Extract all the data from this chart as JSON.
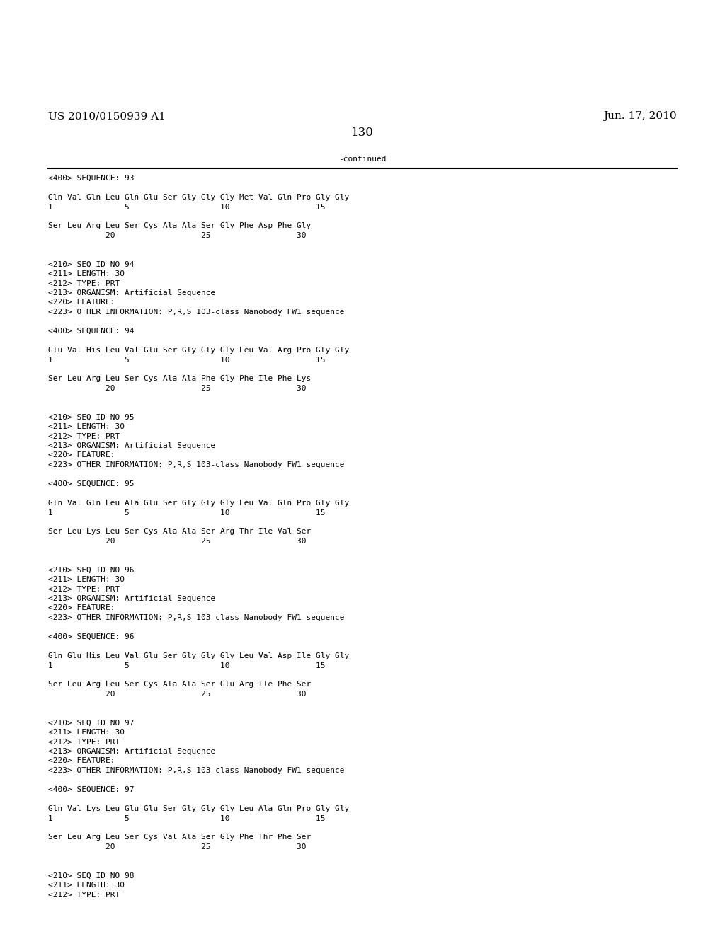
{
  "header_left": "US 2010/0150939 A1",
  "header_right": "Jun. 17, 2010",
  "page_number": "130",
  "continued_text": "-continued",
  "background_color": "#ffffff",
  "text_color": "#000000",
  "font_size_header": 11,
  "font_size_page_num": 12,
  "font_size_body": 8.0,
  "content_lines": [
    "<400> SEQUENCE: 93",
    "",
    "Gln Val Gln Leu Gln Glu Ser Gly Gly Gly Met Val Gln Pro Gly Gly",
    "1               5                   10                  15",
    "",
    "Ser Leu Arg Leu Ser Cys Ala Ala Ser Gly Phe Asp Phe Gly",
    "            20                  25                  30",
    "",
    "",
    "<210> SEQ ID NO 94",
    "<211> LENGTH: 30",
    "<212> TYPE: PRT",
    "<213> ORGANISM: Artificial Sequence",
    "<220> FEATURE:",
    "<223> OTHER INFORMATION: P,R,S 103-class Nanobody FW1 sequence",
    "",
    "<400> SEQUENCE: 94",
    "",
    "Glu Val His Leu Val Glu Ser Gly Gly Gly Leu Val Arg Pro Gly Gly",
    "1               5                   10                  15",
    "",
    "Ser Leu Arg Leu Ser Cys Ala Ala Phe Gly Phe Ile Phe Lys",
    "            20                  25                  30",
    "",
    "",
    "<210> SEQ ID NO 95",
    "<211> LENGTH: 30",
    "<212> TYPE: PRT",
    "<213> ORGANISM: Artificial Sequence",
    "<220> FEATURE:",
    "<223> OTHER INFORMATION: P,R,S 103-class Nanobody FW1 sequence",
    "",
    "<400> SEQUENCE: 95",
    "",
    "Gln Val Gln Leu Ala Glu Ser Gly Gly Gly Leu Val Gln Pro Gly Gly",
    "1               5                   10                  15",
    "",
    "Ser Leu Lys Leu Ser Cys Ala Ala Ser Arg Thr Ile Val Ser",
    "            20                  25                  30",
    "",
    "",
    "<210> SEQ ID NO 96",
    "<211> LENGTH: 30",
    "<212> TYPE: PRT",
    "<213> ORGANISM: Artificial Sequence",
    "<220> FEATURE:",
    "<223> OTHER INFORMATION: P,R,S 103-class Nanobody FW1 sequence",
    "",
    "<400> SEQUENCE: 96",
    "",
    "Gln Glu His Leu Val Glu Ser Gly Gly Gly Leu Val Asp Ile Gly Gly",
    "1               5                   10                  15",
    "",
    "Ser Leu Arg Leu Ser Cys Ala Ala Ser Glu Arg Ile Phe Ser",
    "            20                  25                  30",
    "",
    "",
    "<210> SEQ ID NO 97",
    "<211> LENGTH: 30",
    "<212> TYPE: PRT",
    "<213> ORGANISM: Artificial Sequence",
    "<220> FEATURE:",
    "<223> OTHER INFORMATION: P,R,S 103-class Nanobody FW1 sequence",
    "",
    "<400> SEQUENCE: 97",
    "",
    "Gln Val Lys Leu Glu Glu Ser Gly Gly Gly Leu Ala Gln Pro Gly Gly",
    "1               5                   10                  15",
    "",
    "Ser Leu Arg Leu Ser Cys Val Ala Ser Gly Phe Thr Phe Ser",
    "            20                  25                  30",
    "",
    "",
    "<210> SEQ ID NO 98",
    "<211> LENGTH: 30",
    "<212> TYPE: PRT"
  ]
}
